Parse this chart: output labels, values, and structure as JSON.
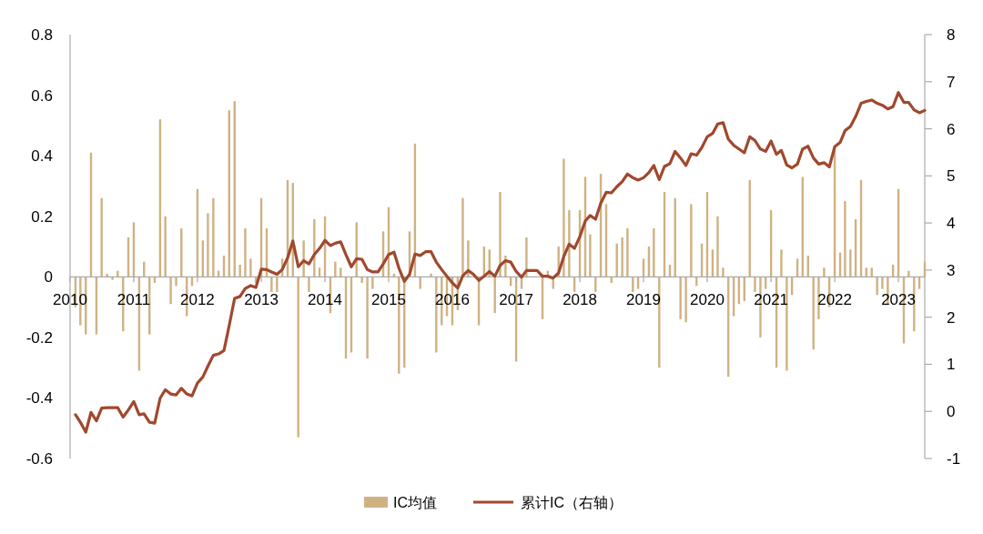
{
  "chart_data": {
    "type": "bar",
    "x": [
      "2010-02",
      "2010-03",
      "2010-04",
      "2010-05",
      "2010-06",
      "2010-07",
      "2010-08",
      "2010-09",
      "2010-10",
      "2010-11",
      "2010-12",
      "2011-01",
      "2011-02",
      "2011-03",
      "2011-04",
      "2011-05",
      "2011-06",
      "2011-07",
      "2011-08",
      "2011-09",
      "2011-10",
      "2011-11",
      "2011-12",
      "2012-01",
      "2012-02",
      "2012-03",
      "2012-04",
      "2012-05",
      "2012-06",
      "2012-07",
      "2012-08",
      "2012-09",
      "2012-10",
      "2012-11",
      "2012-12",
      "2013-01",
      "2013-02",
      "2013-03",
      "2013-04",
      "2013-05",
      "2013-06",
      "2013-07",
      "2013-08",
      "2013-09",
      "2013-10",
      "2013-11",
      "2013-12",
      "2014-01",
      "2014-02",
      "2014-03",
      "2014-04",
      "2014-05",
      "2014-06",
      "2014-07",
      "2014-08",
      "2014-09",
      "2014-10",
      "2014-11",
      "2014-12",
      "2015-01",
      "2015-02",
      "2015-03",
      "2015-04",
      "2015-05",
      "2015-06",
      "2015-07",
      "2015-08",
      "2015-09",
      "2015-10",
      "2015-11",
      "2015-12",
      "2016-01",
      "2016-02",
      "2016-03",
      "2016-04",
      "2016-05",
      "2016-06",
      "2016-07",
      "2016-08",
      "2016-09",
      "2016-10",
      "2016-11",
      "2016-12",
      "2017-01",
      "2017-02",
      "2017-03",
      "2017-04",
      "2017-05",
      "2017-06",
      "2017-07",
      "2017-08",
      "2017-09",
      "2017-10",
      "2017-11",
      "2017-12",
      "2018-01",
      "2018-02",
      "2018-03",
      "2018-04",
      "2018-05",
      "2018-06",
      "2018-07",
      "2018-08",
      "2018-09",
      "2018-10",
      "2018-11",
      "2018-12",
      "2019-01",
      "2019-02",
      "2019-03",
      "2019-04",
      "2019-05",
      "2019-06",
      "2019-07",
      "2019-08",
      "2019-09",
      "2019-10",
      "2019-11",
      "2019-12",
      "2020-01",
      "2020-02",
      "2020-03",
      "2020-04",
      "2020-05",
      "2020-06",
      "2020-07",
      "2020-08",
      "2020-09",
      "2020-10",
      "2020-11",
      "2020-12",
      "2021-01",
      "2021-02",
      "2021-03",
      "2021-04",
      "2021-05",
      "2021-06",
      "2021-07",
      "2021-08",
      "2021-09",
      "2021-10",
      "2021-11",
      "2021-12",
      "2022-01",
      "2022-02",
      "2022-03",
      "2022-04",
      "2022-05",
      "2022-06",
      "2022-07",
      "2022-08",
      "2022-09",
      "2022-10",
      "2022-11",
      "2022-12",
      "2023-01",
      "2023-02",
      "2023-03",
      "2023-04",
      "2023-05",
      "2023-06"
    ],
    "series": [
      {
        "name": "IC均值",
        "color": "#cfb283",
        "values": [
          -0.1,
          -0.16,
          -0.19,
          0.41,
          -0.19,
          0.26,
          0.01,
          -0.01,
          0.02,
          -0.18,
          0.13,
          0.18,
          -0.31,
          0.05,
          -0.19,
          -0.02,
          0.52,
          0.2,
          -0.09,
          -0.03,
          0.16,
          -0.13,
          -0.03,
          0.29,
          0.12,
          0.21,
          0.26,
          0.02,
          0.07,
          0.55,
          0.58,
          0.04,
          0.16,
          0.06,
          -0.02,
          0.26,
          0.16,
          -0.05,
          -0.05,
          0.06,
          0.32,
          0.31,
          -0.53,
          0.12,
          -0.05,
          0.19,
          0.03,
          0.2,
          -0.12,
          0.05,
          0.03,
          -0.27,
          -0.25,
          0.18,
          -0.02,
          -0.27,
          -0.04,
          0.0,
          0.15,
          0.23,
          0.01,
          -0.32,
          -0.3,
          0.15,
          0.44,
          -0.04,
          0.0,
          0.01,
          -0.25,
          -0.16,
          -0.13,
          -0.16,
          -0.11,
          0.26,
          0.12,
          0.0,
          -0.16,
          0.1,
          0.09,
          -0.12,
          0.28,
          0.07,
          -0.03,
          -0.28,
          -0.04,
          0.13,
          0.0,
          0.0,
          -0.14,
          0.02,
          -0.04,
          0.1,
          0.39,
          0.22,
          -0.05,
          0.22,
          0.33,
          0.14,
          -0.05,
          0.34,
          0.24,
          -0.02,
          0.11,
          0.13,
          0.16,
          -0.05,
          -0.04,
          0.06,
          0.1,
          0.16,
          -0.3,
          0.28,
          0.04,
          0.26,
          -0.14,
          -0.15,
          0.24,
          -0.03,
          0.11,
          0.28,
          0.09,
          0.2,
          0.03,
          -0.33,
          -0.13,
          -0.09,
          -0.08,
          0.32,
          -0.05,
          -0.2,
          -0.04,
          0.22,
          -0.3,
          0.09,
          -0.31,
          -0.06,
          0.06,
          0.33,
          0.07,
          -0.24,
          -0.14,
          0.03,
          -0.1,
          0.42,
          0.08,
          0.25,
          0.09,
          0.19,
          0.32,
          0.03,
          0.03,
          -0.06,
          -0.04,
          -0.09,
          0.04,
          0.29,
          -0.22,
          0.02,
          -0.18,
          -0.04,
          0.05
        ]
      },
      {
        "name": "累计IC（右轴）",
        "type": "line",
        "axis": "y2",
        "color": "#a0482e",
        "values": [
          -0.07,
          -0.23,
          -0.44,
          -0.02,
          -0.2,
          0.07,
          0.08,
          0.08,
          0.08,
          -0.12,
          0.03,
          0.21,
          -0.07,
          -0.05,
          -0.23,
          -0.25,
          0.28,
          0.46,
          0.37,
          0.35,
          0.49,
          0.37,
          0.33,
          0.6,
          0.73,
          0.96,
          1.19,
          1.22,
          1.29,
          1.82,
          2.4,
          2.44,
          2.61,
          2.67,
          2.63,
          3.02,
          3.01,
          2.96,
          2.91,
          3.01,
          3.26,
          3.62,
          3.07,
          3.2,
          3.13,
          3.33,
          3.46,
          3.63,
          3.52,
          3.57,
          3.6,
          3.33,
          3.07,
          3.24,
          3.23,
          3.01,
          2.96,
          2.96,
          3.13,
          3.33,
          3.38,
          3.04,
          2.76,
          2.91,
          3.34,
          3.31,
          3.39,
          3.39,
          3.17,
          3.01,
          2.87,
          2.73,
          2.62,
          2.88,
          2.99,
          2.91,
          2.78,
          2.87,
          2.97,
          2.87,
          3.1,
          3.2,
          3.17,
          2.97,
          2.85,
          2.99,
          2.99,
          2.99,
          2.87,
          2.87,
          2.83,
          2.94,
          3.29,
          3.55,
          3.46,
          3.71,
          4.04,
          4.16,
          4.08,
          4.42,
          4.65,
          4.64,
          4.77,
          4.88,
          5.04,
          4.96,
          4.91,
          4.96,
          5.07,
          5.22,
          4.92,
          5.2,
          5.26,
          5.52,
          5.38,
          5.22,
          5.47,
          5.44,
          5.6,
          5.83,
          5.9,
          6.1,
          6.13,
          5.78,
          5.65,
          5.57,
          5.49,
          5.83,
          5.75,
          5.57,
          5.52,
          5.74,
          5.46,
          5.54,
          5.23,
          5.17,
          5.25,
          5.57,
          5.63,
          5.38,
          5.25,
          5.28,
          5.19,
          5.62,
          5.71,
          5.96,
          6.05,
          6.26,
          6.54,
          6.58,
          6.61,
          6.54,
          6.5,
          6.42,
          6.47,
          6.77,
          6.56,
          6.56,
          6.4,
          6.34,
          6.39
        ]
      }
    ],
    "xlim": [
      "2010-01",
      "2023-06"
    ],
    "xticks": [
      "2010",
      "2011",
      "2012",
      "2013",
      "2014",
      "2015",
      "2016",
      "2017",
      "2018",
      "2019",
      "2020",
      "2021",
      "2022",
      "2023"
    ],
    "ylim": [
      -0.6,
      0.8
    ],
    "yticks": [
      -0.6,
      -0.4,
      -0.2,
      0,
      0.2,
      0.4,
      0.6,
      0.8
    ],
    "y2lim": [
      -1,
      8
    ],
    "y2ticks": [
      -1,
      0,
      1,
      2,
      3,
      4,
      5,
      6,
      7,
      8
    ],
    "legend": "bottom"
  }
}
